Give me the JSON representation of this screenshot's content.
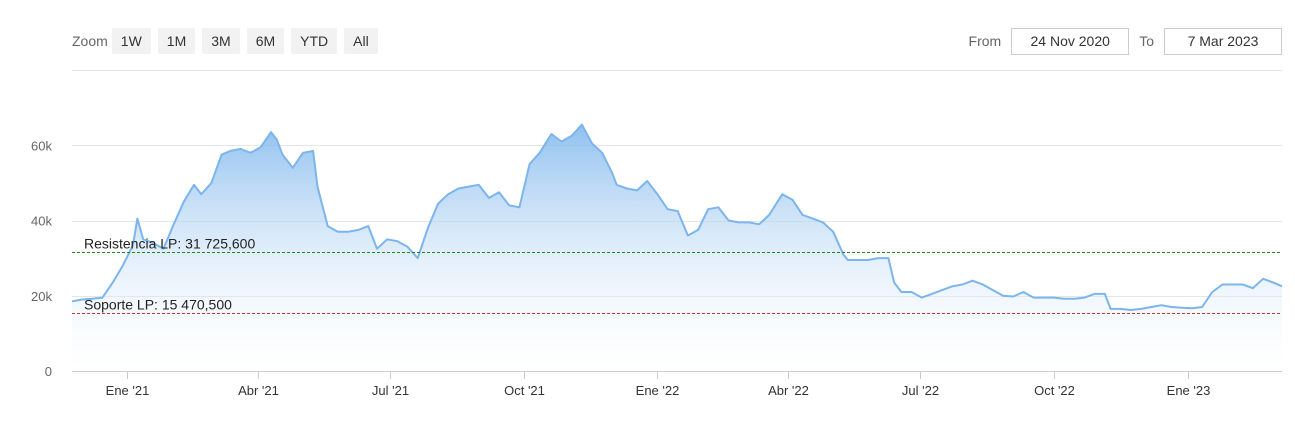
{
  "toolbar": {
    "zoom_label": "Zoom",
    "buttons": [
      "1W",
      "1M",
      "3M",
      "6M",
      "YTD",
      "All"
    ]
  },
  "range": {
    "from_label": "From",
    "from_value": "24 Nov 2020",
    "to_label": "To",
    "to_value": "7 Mar 2023"
  },
  "chart_data": {
    "type": "area",
    "title": "",
    "xlabel": "",
    "ylabel": "",
    "x_ticks": [
      "Ene '21",
      "Abr '21",
      "Jul '21",
      "Oct '21",
      "Ene '22",
      "Abr '22",
      "Jul '22",
      "Oct '22",
      "Ene '23"
    ],
    "y_ticks": [
      "0",
      "20k",
      "40k",
      "60k"
    ],
    "ylim": [
      0,
      80000
    ],
    "xlim": [
      "2020-11-24",
      "2023-03-07"
    ],
    "grid": true,
    "colors": {
      "line": "#7cb5ec",
      "fill_top": "#7cb5ec",
      "fill_bottom": "#ffffff"
    },
    "plot_lines": [
      {
        "label": "Resistencia LP: 31 725,600",
        "value": 31725.6,
        "color": "#1a8a1a",
        "style": "dashed"
      },
      {
        "label": "Soporte LP: 15 470,500",
        "value": 15470.5,
        "color": "#c0392b",
        "style": "dashed"
      }
    ],
    "series": [
      {
        "x": [
          "2020-11-24",
          "2020-12-01",
          "2020-12-08",
          "2020-12-15",
          "2020-12-22",
          "2020-12-29",
          "2021-01-05",
          "2021-01-08",
          "2021-01-12",
          "2021-01-19",
          "2021-01-26",
          "2021-02-02",
          "2021-02-09",
          "2021-02-16",
          "2021-02-21",
          "2021-02-28",
          "2021-03-07",
          "2021-03-13",
          "2021-03-20",
          "2021-03-27",
          "2021-04-03",
          "2021-04-10",
          "2021-04-14",
          "2021-04-18",
          "2021-04-25",
          "2021-05-02",
          "2021-05-09",
          "2021-05-12",
          "2021-05-19",
          "2021-05-26",
          "2021-06-02",
          "2021-06-09",
          "2021-06-16",
          "2021-06-22",
          "2021-06-29",
          "2021-07-06",
          "2021-07-13",
          "2021-07-20",
          "2021-07-27",
          "2021-08-03",
          "2021-08-10",
          "2021-08-17",
          "2021-08-24",
          "2021-08-31",
          "2021-09-07",
          "2021-09-14",
          "2021-09-21",
          "2021-09-28",
          "2021-10-05",
          "2021-10-12",
          "2021-10-20",
          "2021-10-27",
          "2021-11-03",
          "2021-11-10",
          "2021-11-17",
          "2021-11-24",
          "2021-12-01",
          "2021-12-04",
          "2021-12-11",
          "2021-12-18",
          "2021-12-25",
          "2022-01-01",
          "2022-01-08",
          "2022-01-15",
          "2022-01-22",
          "2022-01-29",
          "2022-02-05",
          "2022-02-12",
          "2022-02-19",
          "2022-02-26",
          "2022-03-05",
          "2022-03-12",
          "2022-03-19",
          "2022-03-28",
          "2022-04-04",
          "2022-04-11",
          "2022-04-18",
          "2022-04-25",
          "2022-05-02",
          "2022-05-09",
          "2022-05-12",
          "2022-05-19",
          "2022-05-26",
          "2022-06-02",
          "2022-06-09",
          "2022-06-13",
          "2022-06-18",
          "2022-06-25",
          "2022-07-02",
          "2022-07-09",
          "2022-07-16",
          "2022-07-23",
          "2022-07-30",
          "2022-08-06",
          "2022-08-13",
          "2022-08-20",
          "2022-08-27",
          "2022-09-03",
          "2022-09-10",
          "2022-09-17",
          "2022-09-24",
          "2022-10-01",
          "2022-10-08",
          "2022-10-15",
          "2022-10-22",
          "2022-10-29",
          "2022-11-05",
          "2022-11-09",
          "2022-11-16",
          "2022-11-23",
          "2022-11-30",
          "2022-12-07",
          "2022-12-14",
          "2022-12-21",
          "2022-12-28",
          "2023-01-04",
          "2023-01-11",
          "2023-01-18",
          "2023-01-25",
          "2023-02-01",
          "2023-02-08",
          "2023-02-15",
          "2023-02-22",
          "2023-03-01",
          "2023-03-07"
        ],
        "y": [
          18500,
          19000,
          19200,
          19500,
          23500,
          28000,
          33500,
          40500,
          35000,
          34000,
          32500,
          39000,
          45000,
          49500,
          47000,
          50000,
          57500,
          58500,
          59000,
          58000,
          59500,
          63500,
          61500,
          57500,
          54000,
          58000,
          58500,
          49000,
          38500,
          37000,
          37000,
          37500,
          38500,
          32500,
          35000,
          34500,
          33000,
          30000,
          38000,
          44500,
          47000,
          48500,
          49000,
          49500,
          46000,
          47500,
          44000,
          43500,
          55000,
          58000,
          63000,
          61000,
          62500,
          65500,
          60500,
          58000,
          52500,
          49500,
          48500,
          48000,
          50500,
          47000,
          43000,
          42500,
          36000,
          37500,
          43000,
          43500,
          40000,
          39500,
          39500,
          39000,
          41500,
          47000,
          45500,
          41500,
          40500,
          39500,
          37000,
          31000,
          29500,
          29500,
          29500,
          30000,
          30000,
          23500,
          21000,
          21000,
          19500,
          20500,
          21500,
          22500,
          23000,
          24000,
          23000,
          21500,
          20000,
          19800,
          21000,
          19500,
          19500,
          19500,
          19200,
          19200,
          19500,
          20500,
          20500,
          16500,
          16500,
          16200,
          16500,
          17000,
          17500,
          17000,
          16800,
          16700,
          17000,
          21000,
          23000,
          23000,
          23000,
          22000,
          24500,
          23500,
          22500
        ]
      }
    ]
  }
}
